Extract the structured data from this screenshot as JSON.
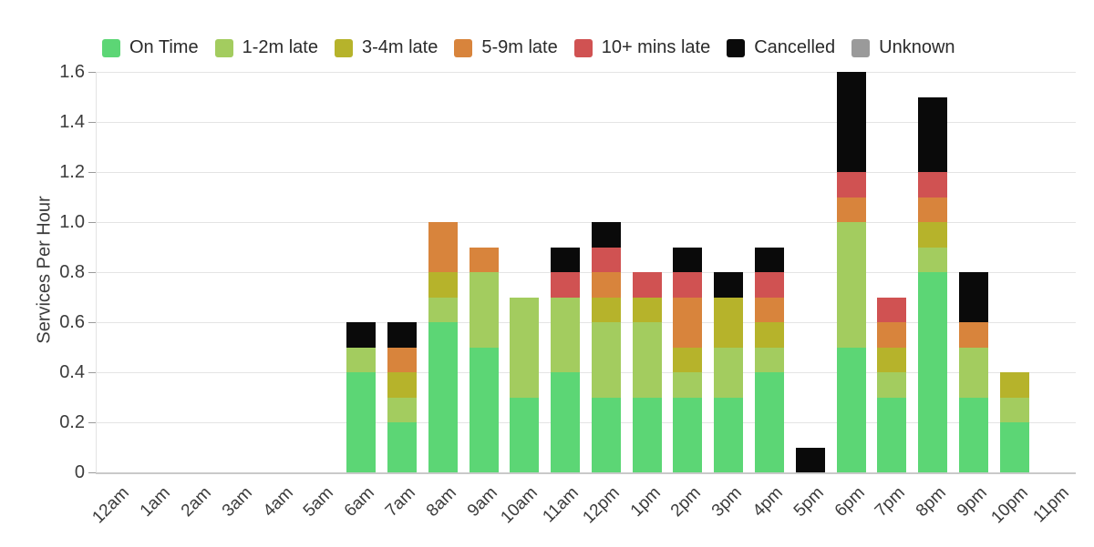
{
  "chart_data": {
    "type": "bar",
    "stacked": true,
    "ylabel": "Services Per Hour",
    "xlabel": "",
    "ylim": [
      0,
      1.6
    ],
    "grid": true,
    "legend_position": "top",
    "yticks": [
      "0",
      "0.2",
      "0.4",
      "0.6",
      "0.8",
      "1.0",
      "1.2",
      "1.4",
      "1.6"
    ],
    "categories": [
      "12am",
      "1am",
      "2am",
      "3am",
      "4am",
      "5am",
      "6am",
      "7am",
      "8am",
      "9am",
      "10am",
      "11am",
      "12pm",
      "1pm",
      "2pm",
      "3pm",
      "4pm",
      "5pm",
      "6pm",
      "7pm",
      "8pm",
      "9pm",
      "10pm",
      "11pm"
    ],
    "series": [
      {
        "name": "On Time",
        "color": "#5cd675",
        "values": [
          0,
          0,
          0,
          0,
          0,
          0,
          0.4,
          0.2,
          0.6,
          0.5,
          0.3,
          0.4,
          0.3,
          0.3,
          0.3,
          0.3,
          0.4,
          0,
          0.5,
          0.3,
          0.8,
          0.3,
          0.2,
          0
        ]
      },
      {
        "name": "1-2m late",
        "color": "#a3cc5f",
        "values": [
          0,
          0,
          0,
          0,
          0,
          0,
          0.1,
          0.1,
          0.1,
          0.3,
          0.4,
          0.3,
          0.3,
          0.3,
          0.1,
          0.2,
          0.1,
          0,
          0.5,
          0.1,
          0.1,
          0.2,
          0.1,
          0
        ]
      },
      {
        "name": "3-4m late",
        "color": "#b6b32b",
        "values": [
          0,
          0,
          0,
          0,
          0,
          0,
          0,
          0.1,
          0.1,
          0,
          0,
          0,
          0.1,
          0.1,
          0.1,
          0.2,
          0.1,
          0,
          0,
          0.1,
          0.1,
          0,
          0.1,
          0
        ]
      },
      {
        "name": "5-9m late",
        "color": "#d8843c",
        "values": [
          0,
          0,
          0,
          0,
          0,
          0,
          0,
          0.1,
          0.2,
          0.1,
          0,
          0,
          0.1,
          0,
          0.2,
          0,
          0.1,
          0,
          0.1,
          0.1,
          0.1,
          0.1,
          0,
          0
        ]
      },
      {
        "name": "10+ mins late",
        "color": "#d05252",
        "values": [
          0,
          0,
          0,
          0,
          0,
          0,
          0,
          0,
          0,
          0,
          0,
          0.1,
          0.1,
          0.1,
          0.1,
          0,
          0.1,
          0,
          0.1,
          0.1,
          0.1,
          0,
          0,
          0
        ]
      },
      {
        "name": "Cancelled",
        "color": "#0a0a0a",
        "values": [
          0,
          0,
          0,
          0,
          0,
          0,
          0.1,
          0.1,
          0,
          0,
          0,
          0.1,
          0.1,
          0,
          0.1,
          0.1,
          0.1,
          0.1,
          0.4,
          0,
          0.3,
          0.2,
          0,
          0
        ]
      },
      {
        "name": "Unknown",
        "color": "#9a9a9a",
        "values": [
          0,
          0,
          0,
          0,
          0,
          0,
          0,
          0,
          0,
          0,
          0,
          0,
          0,
          0,
          0,
          0,
          0,
          0,
          0,
          0,
          0,
          0,
          0,
          0
        ]
      }
    ]
  }
}
